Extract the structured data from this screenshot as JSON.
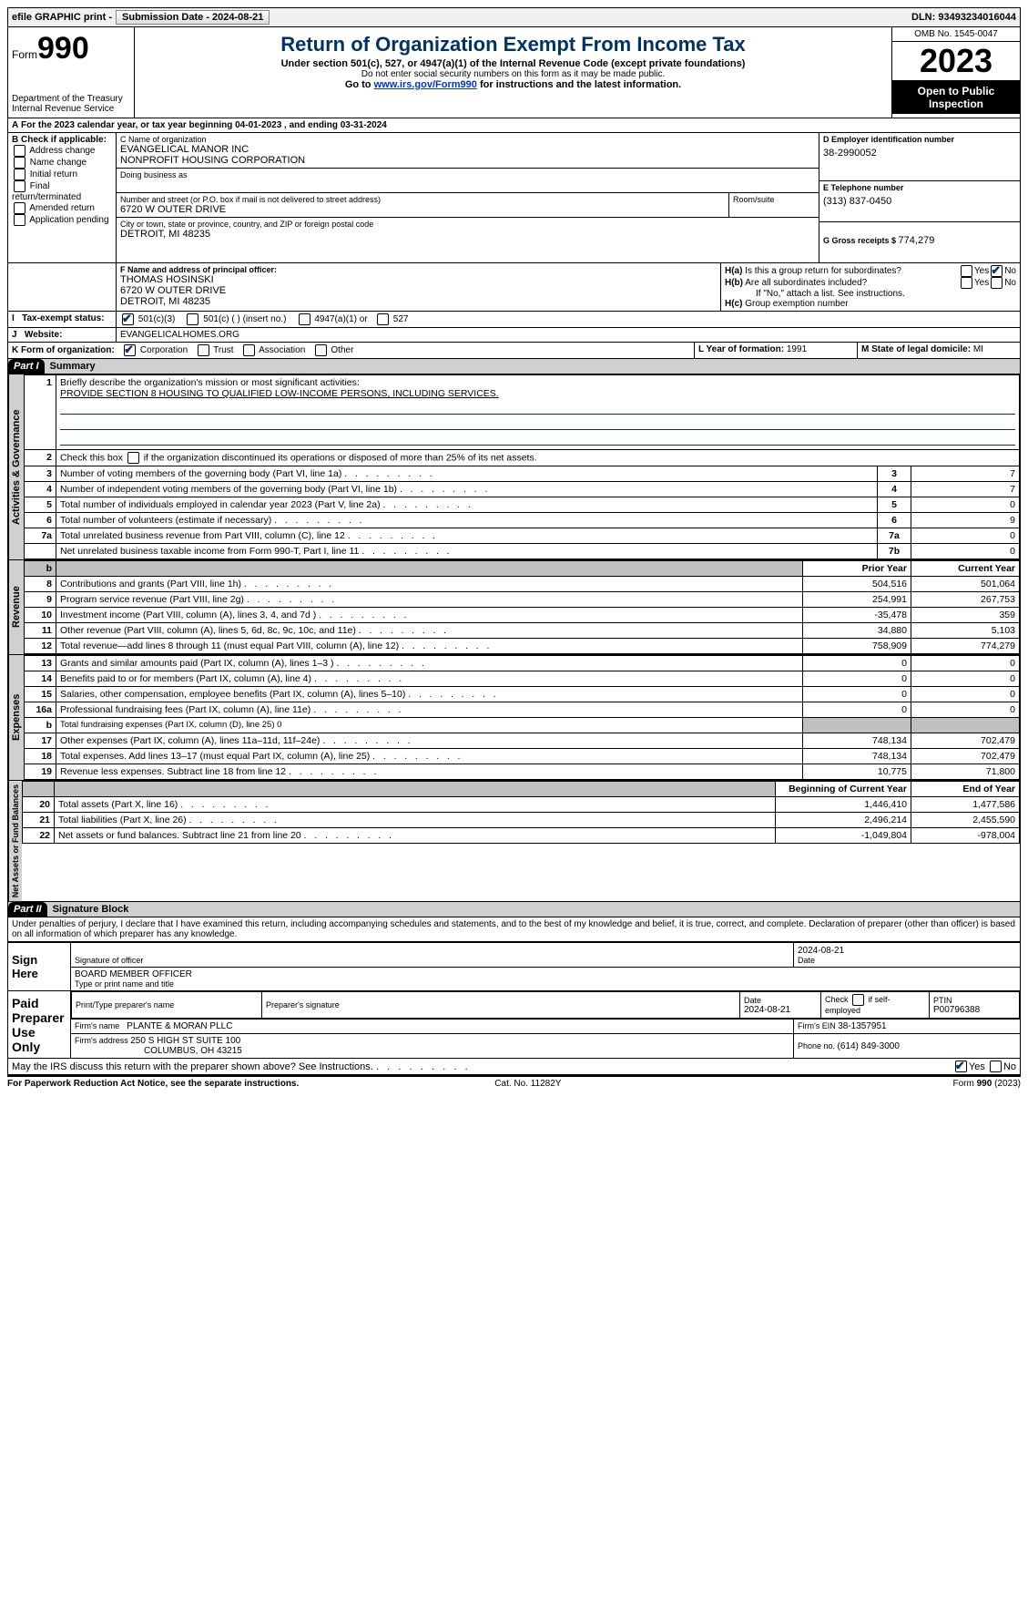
{
  "topbar": {
    "efile": "efile GRAPHIC print -",
    "submission_label": "Submission Date - ",
    "submission_date": "2024-08-21",
    "dln_label": "DLN: ",
    "dln": "93493234016044"
  },
  "header": {
    "form_word": "Form",
    "form_num": "990",
    "title": "Return of Organization Exempt From Income Tax",
    "subtitle": "Under section 501(c), 527, or 4947(a)(1) of the Internal Revenue Code (except private foundations)",
    "note": "Do not enter social security numbers on this form as it may be made public.",
    "goto_pre": "Go to ",
    "goto_link": "www.irs.gov/Form990",
    "goto_post": " for instructions and the latest information.",
    "dept": "Department of the Treasury",
    "irs": "Internal Revenue Service",
    "omb": "OMB No. 1545-0047",
    "year": "2023",
    "inspect": "Open to Public Inspection"
  },
  "A": {
    "text": "For the 2023 calendar year, or tax year beginning ",
    "begin": "04-01-2023",
    "mid": "   , and ending ",
    "end": "03-31-2024"
  },
  "B": {
    "label": "B Check if applicable:",
    "opts": [
      "Address change",
      "Name change",
      "Initial return",
      "Final return/terminated",
      "Amended return",
      "Application pending"
    ]
  },
  "C": {
    "name_lbl": "C Name of organization",
    "name1": "EVANGELICAL MANOR INC",
    "name2": "NONPROFIT HOUSING CORPORATION",
    "dba_lbl": "Doing business as",
    "addr_lbl": "Number and street (or P.O. box if mail is not delivered to street address)",
    "addr": "6720 W OUTER DRIVE",
    "room_lbl": "Room/suite",
    "city_lbl": "City or town, state or province, country, and ZIP or foreign postal code",
    "city": "DETROIT, MI  48235"
  },
  "D": {
    "lbl": "D Employer identification number",
    "val": "38-2990052"
  },
  "E": {
    "lbl": "E Telephone number",
    "val": "(313) 837-0450"
  },
  "G": {
    "lbl": "G Gross receipts $ ",
    "val": "774,279"
  },
  "F": {
    "lbl": "F  Name and address of principal officer:",
    "name": "THOMAS HOSINSKI",
    "addr": "6720 W OUTER DRIVE",
    "city": "DETROIT, MI  48235"
  },
  "H": {
    "a_lbl": "H(a)  Is this a group return for subordinates?",
    "b_lbl": "H(b)  Are all subordinates included?",
    "b_note": "If \"No,\" attach a list. See instructions.",
    "c_lbl": "H(c)  Group exemption number  "
  },
  "I": {
    "lbl": "Tax-exempt status:",
    "o1": "501(c)(3)",
    "o2": "501(c) (  ) (insert no.)",
    "o3": "4947(a)(1) or",
    "o4": "527"
  },
  "J": {
    "lbl": "Website: ",
    "val": "EVANGELICALHOMES.ORG"
  },
  "K": {
    "lbl": "K Form of organization:",
    "o1": "Corporation",
    "o2": "Trust",
    "o3": "Association",
    "o4": "Other"
  },
  "L": {
    "lbl": "L Year of formation: ",
    "val": "1991"
  },
  "M": {
    "lbl": "M State of legal domicile: ",
    "val": "MI"
  },
  "partI": {
    "num": "Part I",
    "title": "Summary"
  },
  "summary": {
    "l1_lbl": "Briefly describe the organization's mission or most significant activities:",
    "l1_val": "PROVIDE SECTION 8 HOUSING TO QUALIFIED LOW-INCOME PERSONS, INCLUDING SERVICES.",
    "l2": "Check this box      if the organization discontinued its operations or disposed of more than 25% of its net assets.",
    "rows_ag": [
      {
        "n": "3",
        "t": "Number of voting members of the governing body (Part VI, line 1a)",
        "b": "3",
        "v": "7"
      },
      {
        "n": "4",
        "t": "Number of independent voting members of the governing body (Part VI, line 1b)",
        "b": "4",
        "v": "7"
      },
      {
        "n": "5",
        "t": "Total number of individuals employed in calendar year 2023 (Part V, line 2a)",
        "b": "5",
        "v": "0"
      },
      {
        "n": "6",
        "t": "Total number of volunteers (estimate if necessary)",
        "b": "6",
        "v": "9"
      },
      {
        "n": "7a",
        "t": "Total unrelated business revenue from Part VIII, column (C), line 12",
        "b": "7a",
        "v": "0"
      },
      {
        "n": "",
        "t": "Net unrelated business taxable income from Form 990-T, Part I, line 11",
        "b": "7b",
        "v": "0"
      }
    ],
    "hdr_prior": "Prior Year",
    "hdr_curr": "Current Year",
    "rev": [
      {
        "n": "8",
        "t": "Contributions and grants (Part VIII, line 1h)",
        "p": "504,516",
        "c": "501,064"
      },
      {
        "n": "9",
        "t": "Program service revenue (Part VIII, line 2g)",
        "p": "254,991",
        "c": "267,753"
      },
      {
        "n": "10",
        "t": "Investment income (Part VIII, column (A), lines 3, 4, and 7d )",
        "p": "-35,478",
        "c": "359"
      },
      {
        "n": "11",
        "t": "Other revenue (Part VIII, column (A), lines 5, 6d, 8c, 9c, 10c, and 11e)",
        "p": "34,880",
        "c": "5,103"
      },
      {
        "n": "12",
        "t": "Total revenue—add lines 8 through 11 (must equal Part VIII, column (A), line 12)",
        "p": "758,909",
        "c": "774,279"
      }
    ],
    "exp": [
      {
        "n": "13",
        "t": "Grants and similar amounts paid (Part IX, column (A), lines 1–3 )",
        "p": "0",
        "c": "0"
      },
      {
        "n": "14",
        "t": "Benefits paid to or for members (Part IX, column (A), line 4)",
        "p": "0",
        "c": "0"
      },
      {
        "n": "15",
        "t": "Salaries, other compensation, employee benefits (Part IX, column (A), lines 5–10)",
        "p": "0",
        "c": "0"
      },
      {
        "n": "16a",
        "t": "Professional fundraising fees (Part IX, column (A), line 11e)",
        "p": "0",
        "c": "0"
      },
      {
        "n": "b",
        "t": "Total fundraising expenses (Part IX, column (D), line 25) 0",
        "p": "",
        "c": "",
        "shade": true,
        "small": true
      },
      {
        "n": "17",
        "t": "Other expenses (Part IX, column (A), lines 11a–11d, 11f–24e)",
        "p": "748,134",
        "c": "702,479"
      },
      {
        "n": "18",
        "t": "Total expenses. Add lines 13–17 (must equal Part IX, column (A), line 25)",
        "p": "748,134",
        "c": "702,479"
      },
      {
        "n": "19",
        "t": "Revenue less expenses. Subtract line 18 from line 12",
        "p": "10,775",
        "c": "71,800"
      }
    ],
    "hdr_begin": "Beginning of Current Year",
    "hdr_end": "End of Year",
    "na": [
      {
        "n": "20",
        "t": "Total assets (Part X, line 16)",
        "p": "1,446,410",
        "c": "1,477,586"
      },
      {
        "n": "21",
        "t": "Total liabilities (Part X, line 26)",
        "p": "2,496,214",
        "c": "2,455,590"
      },
      {
        "n": "22",
        "t": "Net assets or fund balances. Subtract line 21 from line 20",
        "p": "-1,049,804",
        "c": "-978,004"
      }
    ],
    "side_ag": "Activities & Governance",
    "side_rev": "Revenue",
    "side_exp": "Expenses",
    "side_na": "Net Assets or Fund Balances"
  },
  "partII": {
    "num": "Part II",
    "title": "Signature Block"
  },
  "sig": {
    "decl": "Under penalties of perjury, I declare that I have examined this return, including accompanying schedules and statements, and to the best of my knowledge and belief, it is true, correct, and complete. Declaration of preparer (other than officer) is based on all information of which preparer has any knowledge.",
    "sign_here": "Sign Here",
    "sig_off": "Signature of officer",
    "date_lbl": "Date",
    "sig_date": "2024-08-21",
    "title_line": "BOARD MEMBER  OFFICER",
    "title_lbl": "Type or print name and title",
    "paid": "Paid Preparer Use Only",
    "prep_name_lbl": "Print/Type preparer's name",
    "prep_sig_lbl": "Preparer's signature",
    "prep_date": "2024-08-21",
    "check_self": "Check         if self-employed",
    "ptin_lbl": "PTIN",
    "ptin": "P00796388",
    "firm_name_lbl": "Firm's name   ",
    "firm_name": "PLANTE & MORAN PLLC",
    "firm_ein_lbl": "Firm's EIN  ",
    "firm_ein": "38-1357951",
    "firm_addr_lbl": "Firm's address ",
    "firm_addr1": "250 S HIGH ST SUITE 100",
    "firm_addr2": "COLUMBUS, OH  43215",
    "phone_lbl": "Phone no. ",
    "phone": "(614) 849-3000",
    "may_irs": "May the IRS discuss this return with the preparer shown above? See Instructions."
  },
  "footer": {
    "pra": "For Paperwork Reduction Act Notice, see the separate instructions.",
    "cat": "Cat. No. 11282Y",
    "form": "Form 990 (2023)"
  },
  "yes": "Yes",
  "no": "No",
  "b_marker": "b"
}
